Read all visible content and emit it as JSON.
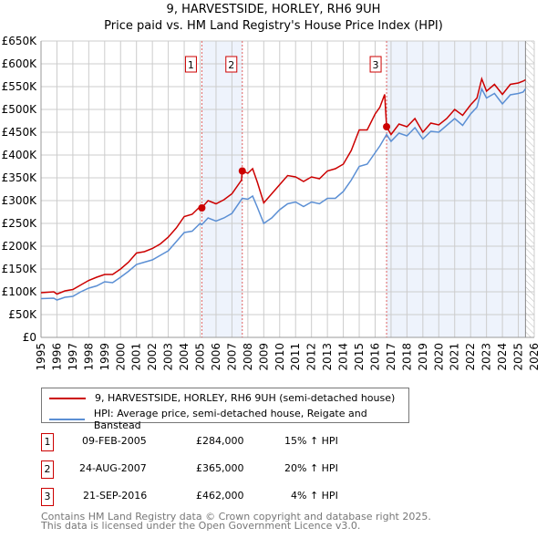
{
  "title": "9, HARVESTSIDE, HORLEY, RH6 9UH",
  "subtitle": "Price paid vs. HM Land Registry's House Price Index (HPI)",
  "chart_data": {
    "type": "line",
    "title": "9, HARVESTSIDE, HORLEY, RH6 9UH — Price paid vs. HM Land Registry's House Price Index (HPI)",
    "xlim": [
      1995,
      2026
    ],
    "ylim": [
      0,
      650000
    ],
    "x_ticks": [
      "1995",
      "1996",
      "1997",
      "1998",
      "1999",
      "2000",
      "2001",
      "2002",
      "2003",
      "2004",
      "2005",
      "2006",
      "2007",
      "2008",
      "2009",
      "2010",
      "2011",
      "2012",
      "2013",
      "2014",
      "2015",
      "2016",
      "2017",
      "2018",
      "2019",
      "2020",
      "2021",
      "2022",
      "2023",
      "2024",
      "2025",
      "2026"
    ],
    "y_ticks": [
      "£0",
      "£50K",
      "£100K",
      "£150K",
      "£200K",
      "£250K",
      "£300K",
      "£350K",
      "£400K",
      "£450K",
      "£500K",
      "£550K",
      "£600K",
      "£650K"
    ],
    "colors": {
      "property": "#cc0000",
      "hpi": "#5b8fd4",
      "shade": "#eef3fc",
      "marker_line": "#e06060"
    },
    "series": [
      {
        "name": "9, HARVESTSIDE, HORLEY, RH6 9UH (semi-detached house)",
        "x": [
          1995,
          1995.8,
          1996,
          1996.5,
          1997,
          1997.5,
          1998,
          1998.5,
          1999,
          1999.5,
          2000,
          2000.5,
          2001,
          2001.5,
          2002,
          2002.5,
          2003,
          2003.5,
          2004,
          2004.5,
          2005,
          2005.1,
          2005.5,
          2006,
          2006.5,
          2007,
          2007.6,
          2007.65,
          2008,
          2008.3,
          2008.6,
          2009,
          2009.5,
          2010,
          2010.5,
          2011,
          2011.5,
          2012,
          2012.5,
          2013,
          2013.5,
          2014,
          2014.5,
          2015,
          2015.5,
          2016,
          2016.3,
          2016.6,
          2016.72,
          2017,
          2017.5,
          2018,
          2018.5,
          2019,
          2019.5,
          2020,
          2020.5,
          2021,
          2021.5,
          2022,
          2022.4,
          2022.7,
          2023,
          2023.5,
          2024,
          2024.5,
          2025,
          2025.3,
          2025.45
        ],
        "values": [
          98000,
          100000,
          95000,
          102000,
          105000,
          115000,
          125000,
          132000,
          138000,
          138000,
          150000,
          165000,
          185000,
          188000,
          195000,
          205000,
          220000,
          240000,
          265000,
          270000,
          287000,
          284000,
          300000,
          293000,
          302000,
          315000,
          345000,
          365000,
          360000,
          370000,
          340000,
          295000,
          315000,
          335000,
          355000,
          352000,
          342000,
          352000,
          348000,
          365000,
          370000,
          380000,
          410000,
          455000,
          455000,
          490000,
          505000,
          533000,
          462000,
          445000,
          468000,
          462000,
          480000,
          450000,
          470000,
          466000,
          480000,
          500000,
          487000,
          510000,
          525000,
          567000,
          540000,
          555000,
          533000,
          555000,
          558000,
          562000,
          565000
        ]
      },
      {
        "name": "HPI: Average price, semi-detached house, Reigate and Banstead",
        "x": [
          1995,
          1995.8,
          1996,
          1996.5,
          1997,
          1997.5,
          1998,
          1998.5,
          1999,
          1999.5,
          2000,
          2000.5,
          2001,
          2001.5,
          2002,
          2002.5,
          2003,
          2003.5,
          2004,
          2004.5,
          2005,
          2005.1,
          2005.5,
          2006,
          2006.5,
          2007,
          2007.65,
          2008,
          2008.3,
          2008.6,
          2009,
          2009.5,
          2010,
          2010.5,
          2011,
          2011.5,
          2012,
          2012.5,
          2013,
          2013.5,
          2014,
          2014.5,
          2015,
          2015.5,
          2016,
          2016.3,
          2016.72,
          2017,
          2017.5,
          2018,
          2018.5,
          2019,
          2019.5,
          2020,
          2020.5,
          2021,
          2021.5,
          2022,
          2022.4,
          2022.7,
          2023,
          2023.5,
          2024,
          2024.5,
          2025,
          2025.3,
          2025.45
        ],
        "values": [
          85000,
          86000,
          82000,
          88000,
          90000,
          100000,
          108000,
          113000,
          122000,
          120000,
          132000,
          145000,
          160000,
          165000,
          170000,
          180000,
          190000,
          210000,
          230000,
          233000,
          250000,
          247000,
          262000,
          255000,
          262000,
          272000,
          305000,
          303000,
          310000,
          285000,
          250000,
          262000,
          280000,
          293000,
          297000,
          287000,
          297000,
          293000,
          305000,
          305000,
          320000,
          345000,
          375000,
          380000,
          405000,
          420000,
          445000,
          430000,
          448000,
          442000,
          460000,
          435000,
          452000,
          450000,
          465000,
          480000,
          465000,
          490000,
          505000,
          545000,
          525000,
          535000,
          512000,
          532000,
          535000,
          538000,
          545000
        ]
      }
    ],
    "sales": [
      {
        "label": "1",
        "x": 2005.11,
        "price": 284000
      },
      {
        "label": "2",
        "x": 2007.65,
        "price": 365000
      },
      {
        "label": "3",
        "x": 2016.72,
        "price": 462000
      }
    ],
    "shaded_ranges": [
      [
        2005.11,
        2007.65
      ],
      [
        2016.72,
        2025.45
      ]
    ],
    "hatched_from": 2025.45
  },
  "legend": [
    "9, HARVESTSIDE, HORLEY, RH6 9UH (semi-detached house)",
    "HPI: Average price, semi-detached house, Reigate and Banstead"
  ],
  "transactions": [
    {
      "num": "1",
      "date": "09-FEB-2005",
      "price": "£284,000",
      "hpi": "15% ↑ HPI"
    },
    {
      "num": "2",
      "date": "24-AUG-2007",
      "price": "£365,000",
      "hpi": "20% ↑ HPI"
    },
    {
      "num": "3",
      "date": "21-SEP-2016",
      "price": "£462,000",
      "hpi": "4% ↑ HPI"
    }
  ],
  "footer": [
    "Contains HM Land Registry data © Crown copyright and database right 2025.",
    "This data is licensed under the Open Government Licence v3.0."
  ]
}
